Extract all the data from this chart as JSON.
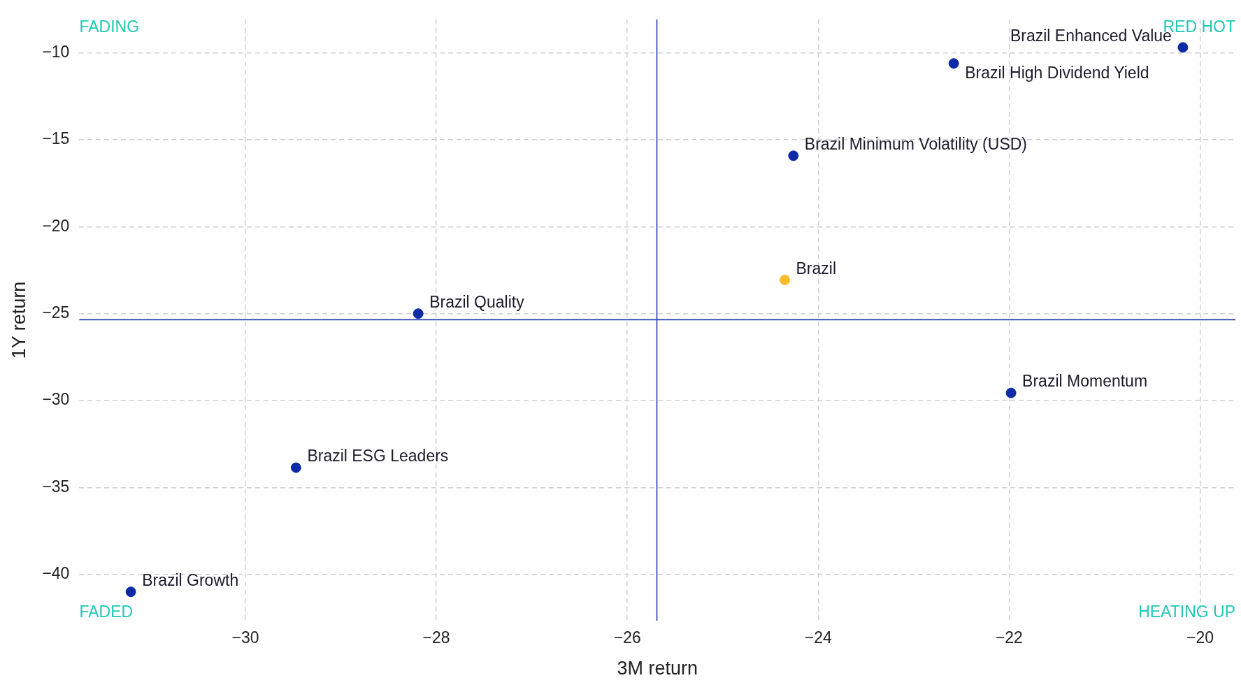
{
  "chart_data": {
    "type": "scatter",
    "xlabel": "3M return",
    "ylabel": "1Y return",
    "xlim": [
      -31.74,
      -19.63
    ],
    "xticks": [
      -30,
      -28,
      -26,
      -24,
      -22,
      -20
    ],
    "ylim": [
      -42.66,
      -8.08
    ],
    "yticks": [
      -40,
      -35,
      -30,
      -25,
      -20,
      -15,
      -10
    ],
    "grid": true,
    "legend": false,
    "marker": "circle",
    "series": [
      {
        "name": "Brazil Enhanced Value",
        "color": "#0f2aa6",
        "x": [
          -20.18
        ],
        "values": [
          -9.69
        ]
      },
      {
        "name": "Brazil High Dividend Yield",
        "color": "#0f2aa6",
        "x": [
          -22.58
        ],
        "values": [
          -10.61
        ]
      },
      {
        "name": "Brazil Minimum Volatility (USD)",
        "color": "#0f2aa6",
        "x": [
          -24.26
        ],
        "values": [
          -15.92
        ]
      },
      {
        "name": "Brazil",
        "color": "#fbbc2c",
        "x": [
          -24.35
        ],
        "values": [
          -23.06
        ]
      },
      {
        "name": "Brazil Quality",
        "color": "#0f2aa6",
        "x": [
          -28.19
        ],
        "values": [
          -25.0
        ]
      },
      {
        "name": "Brazil Momentum",
        "color": "#0f2aa6",
        "x": [
          -21.98
        ],
        "values": [
          -29.56
        ]
      },
      {
        "name": "Brazil ESG Leaders",
        "color": "#0f2aa6",
        "x": [
          -29.47
        ],
        "values": [
          -33.86
        ]
      },
      {
        "name": "Brazil Growth",
        "color": "#0f2aa6",
        "x": [
          -31.2
        ],
        "values": [
          -41.0
        ]
      }
    ],
    "ref_lines": [
      {
        "axis": "x",
        "value": -25.69,
        "color": "#2a3ab0"
      },
      {
        "axis": "y",
        "value": -25.35,
        "color": "#2a3ab0"
      }
    ],
    "annotations": [
      "FADING",
      "RED HOT",
      "FADED",
      "HEATING UP"
    ]
  }
}
